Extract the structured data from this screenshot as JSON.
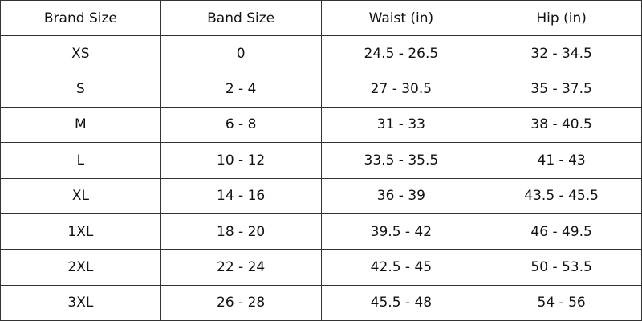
{
  "table": {
    "header": [
      "Brand Size",
      "Band Size",
      "Waist (in)",
      "Hip (in)"
    ],
    "rows": [
      [
        "XS",
        "0",
        "24.5 - 26.5",
        "32 - 34.5"
      ],
      [
        "S",
        "2 - 4",
        "27 - 30.5",
        "35 - 37.5"
      ],
      [
        "M",
        "6 - 8",
        "31 - 33",
        "38 - 40.5"
      ],
      [
        "L",
        "10 - 12",
        "33.5 - 35.5",
        "41 - 43"
      ],
      [
        "XL",
        "14 - 16",
        "36 - 39",
        "43.5 - 45.5"
      ],
      [
        "1XL",
        "18 - 20",
        "39.5 - 42",
        "46 - 49.5"
      ],
      [
        "2XL",
        "22 - 24",
        "42.5 - 45",
        "50 - 53.5"
      ],
      [
        "3XL",
        "26 - 28",
        "45.5 - 48",
        "54 - 56"
      ]
    ]
  }
}
